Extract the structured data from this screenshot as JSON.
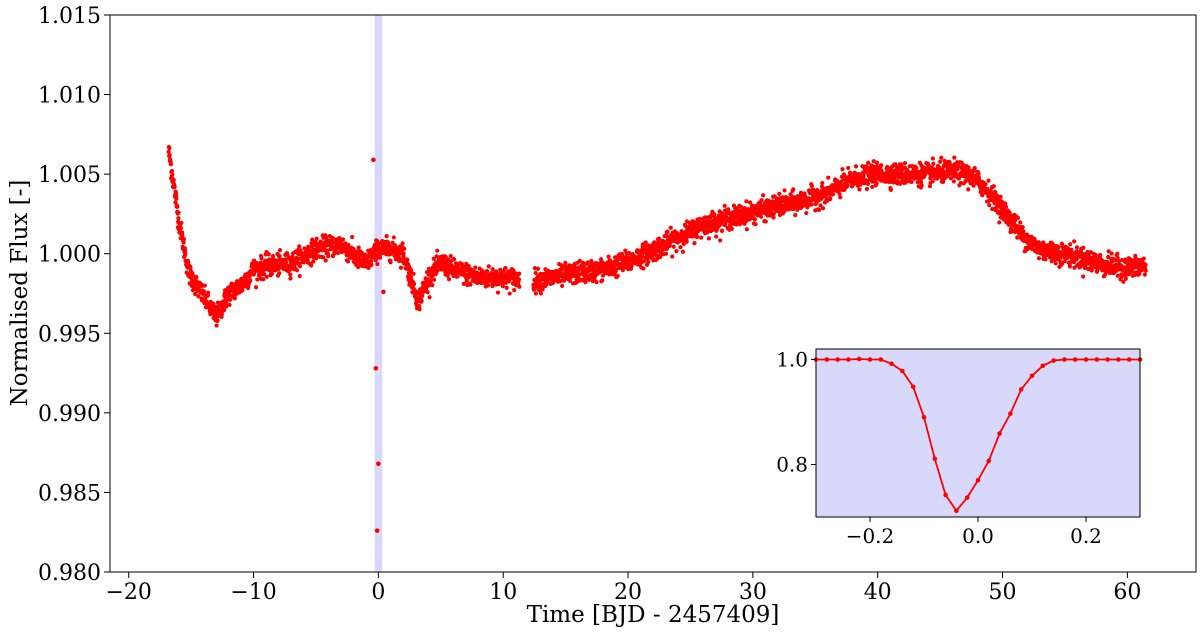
{
  "chart_data": [
    {
      "type": "scatter",
      "title": "",
      "xlabel": "Time [BJD - 2457409]",
      "ylabel": "Normalised Flux [-]",
      "xlim": [
        -21.5,
        65.5
      ],
      "ylim": [
        0.98,
        1.015
      ],
      "xticks": [
        -20,
        -10,
        0,
        10,
        20,
        30,
        40,
        50,
        60
      ],
      "xtick_labels": [
        "−20",
        "−10",
        "0",
        "10",
        "20",
        "30",
        "40",
        "50",
        "60"
      ],
      "yticks": [
        0.98,
        0.985,
        0.99,
        0.995,
        1.0,
        1.005,
        1.01,
        1.015
      ],
      "ytick_labels": [
        "0.980",
        "0.985",
        "0.990",
        "0.995",
        "1.000",
        "1.005",
        "1.010",
        "1.015"
      ],
      "grid": false,
      "point_color": "#ff0000",
      "highlight_span": {
        "x": [
          -0.3,
          0.3
        ],
        "color": "#d8d8fa"
      },
      "trend": {
        "x": [
          -16.8,
          -16.0,
          -15.2,
          -14.4,
          -13.6,
          -13.0,
          -12.0,
          -11.0,
          -10.0,
          -9.0,
          -7.0,
          -5.0,
          -3.0,
          -2.0,
          -1.0,
          0.0,
          1.0,
          2.0,
          2.6,
          3.2,
          4.0,
          5.0,
          6.0,
          8.0,
          10.0,
          11.2,
          12.5,
          14.0,
          16.0,
          18.0,
          20.0,
          22.0,
          24.0,
          26.0,
          28.0,
          30.0,
          32.0,
          34.0,
          36.0,
          38.0,
          40.0,
          42.0,
          44.0,
          46.0,
          47.0,
          48.0,
          49.0,
          50.0,
          51.0,
          52.0,
          53.0,
          54.0,
          56.0,
          58.0,
          60.0,
          61.5
        ],
        "y": [
          1.0065,
          1.0022,
          0.9988,
          0.9978,
          0.9968,
          0.996,
          0.9975,
          0.998,
          0.999,
          0.9992,
          0.9994,
          1.0003,
          1.0006,
          0.9999,
          0.9994,
          1.0003,
          1.0003,
          1.0,
          0.9985,
          0.997,
          0.9985,
          0.9994,
          0.999,
          0.9985,
          0.9985,
          0.9984,
          0.9983,
          0.9985,
          0.9988,
          0.999,
          0.9995,
          1.0002,
          1.001,
          1.0018,
          1.0022,
          1.0026,
          1.003,
          1.0033,
          1.0038,
          1.0047,
          1.005,
          1.005,
          1.005,
          1.0052,
          1.005,
          1.0046,
          1.0038,
          1.0028,
          1.0018,
          1.0008,
          1.0003,
          1.0001,
          0.9998,
          0.9993,
          0.9991,
          0.9992
        ]
      },
      "gaps": [
        [
          11.3,
          12.4
        ]
      ],
      "outliers": {
        "x": [
          -0.4,
          -0.2,
          0.0,
          -0.1,
          0.4
        ],
        "y": [
          1.0059,
          0.9928,
          0.9868,
          0.9826,
          0.9976
        ]
      }
    },
    {
      "type": "line",
      "title": "",
      "xlim": [
        -0.3,
        0.3
      ],
      "ylim": [
        0.7,
        1.02
      ],
      "xticks": [
        -0.2,
        0.0,
        0.2
      ],
      "xtick_labels": [
        "−0.2",
        "0.0",
        "0.2"
      ],
      "yticks": [
        0.8,
        1.0
      ],
      "ytick_labels": [
        "0.8",
        "1.0"
      ],
      "background": "#d8d8fa",
      "line_color": "#ff0000",
      "x": [
        -0.3,
        -0.28,
        -0.26,
        -0.24,
        -0.22,
        -0.2,
        -0.18,
        -0.16,
        -0.14,
        -0.12,
        -0.1,
        -0.08,
        -0.06,
        -0.04,
        -0.02,
        0.0,
        0.02,
        0.04,
        0.06,
        0.08,
        0.1,
        0.12,
        0.14,
        0.16,
        0.18,
        0.2,
        0.22,
        0.24,
        0.26,
        0.28,
        0.3
      ],
      "y": [
        1.0,
        1.0,
        1.0,
        1.0,
        1.001,
        1.0,
        1.0,
        0.992,
        0.978,
        0.948,
        0.89,
        0.811,
        0.742,
        0.712,
        0.737,
        0.77,
        0.807,
        0.859,
        0.897,
        0.943,
        0.969,
        0.988,
        0.998,
        1.0,
        1.0,
        1.0,
        1.0,
        1.0,
        1.0,
        1.0,
        1.0
      ]
    }
  ]
}
